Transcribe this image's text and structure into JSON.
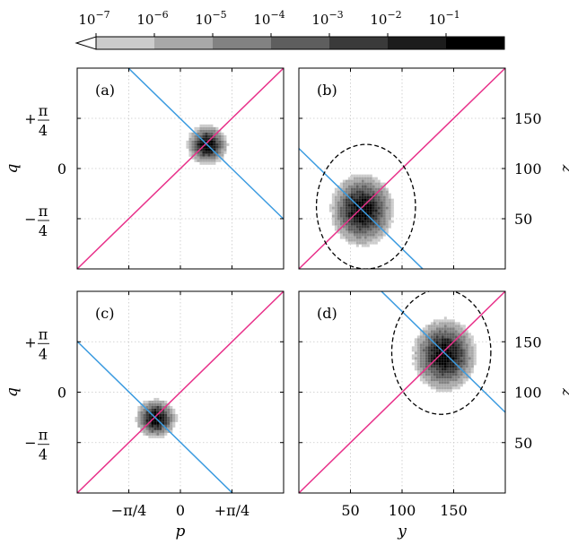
{
  "colorbar": {
    "labels": [
      "10^{-7}",
      "10^{-6}",
      "10^{-5}",
      "10^{-4}",
      "10^{-3}",
      "10^{-2}",
      "10^{-1}"
    ],
    "exponents": [
      -7,
      -6,
      -5,
      -4,
      -3,
      -2,
      -1
    ],
    "colors": [
      "#cccccc",
      "#a8a8a8",
      "#828282",
      "#5e5e5e",
      "#3a3a3a",
      "#1c1c1c",
      "#000000"
    ],
    "extend": "min"
  },
  "style": {
    "blue_line": "#3b9be0",
    "magenta_line": "#e8318a",
    "grid": "#c8c8c8",
    "ellipse": "#000000"
  },
  "chart_data": [
    {
      "panel": "(a)",
      "type": "heatmap",
      "xlabel": "",
      "ylabel": "q",
      "xlim": [
        -1.571,
        1.571
      ],
      "ylim": [
        -1.571,
        1.571
      ],
      "xticks": [
        -0.785,
        0,
        0.785
      ],
      "yticks": [
        {
          "value": 0.785,
          "label": "+π/4"
        },
        {
          "value": 0,
          "label": "0"
        },
        {
          "value": -0.785,
          "label": "−π/4"
        }
      ],
      "blob": {
        "center": [
          0.39,
          0.39
        ],
        "sigma": [
          0.12,
          0.12
        ]
      },
      "lines": [
        {
          "color": "magenta",
          "slope": 1,
          "intercept": 0
        },
        {
          "color": "blue",
          "slope": -1,
          "intercept": 0.78
        }
      ],
      "grid": true
    },
    {
      "panel": "(b)",
      "type": "heatmap",
      "xlabel": "",
      "ylabel": "z",
      "yaxis_side": "right",
      "xlim": [
        0,
        200
      ],
      "ylim": [
        0,
        200
      ],
      "yticks": [
        {
          "value": 150,
          "label": "150"
        },
        {
          "value": 100,
          "label": "100"
        },
        {
          "value": 50,
          "label": "50"
        }
      ],
      "blob": {
        "center": [
          60,
          60
        ],
        "sigma": [
          12,
          14
        ]
      },
      "ellipse": {
        "center": [
          65,
          62
        ],
        "radii": [
          48,
          62
        ]
      },
      "lines": [
        {
          "color": "magenta",
          "slope": 1,
          "intercept": 0
        },
        {
          "color": "blue",
          "slope": -1,
          "intercept": 120
        }
      ],
      "grid": true
    },
    {
      "panel": "(c)",
      "type": "heatmap",
      "xlabel": "p",
      "ylabel": "q",
      "xlim": [
        -1.571,
        1.571
      ],
      "ylim": [
        -1.571,
        1.571
      ],
      "xticks": [
        {
          "value": -0.785,
          "label": "−π/4"
        },
        {
          "value": 0,
          "label": "0"
        },
        {
          "value": 0.785,
          "label": "+π/4"
        }
      ],
      "yticks": [
        {
          "value": 0.785,
          "label": "+π/4"
        },
        {
          "value": 0,
          "label": "0"
        },
        {
          "value": -0.785,
          "label": "−π/4"
        }
      ],
      "blob": {
        "center": [
          -0.39,
          -0.39
        ],
        "sigma": [
          0.12,
          0.12
        ]
      },
      "lines": [
        {
          "color": "magenta",
          "slope": 1,
          "intercept": 0
        },
        {
          "color": "blue",
          "slope": -1,
          "intercept": -0.78
        }
      ],
      "grid": true
    },
    {
      "panel": "(d)",
      "type": "heatmap",
      "xlabel": "y",
      "ylabel": "z",
      "yaxis_side": "right",
      "xlim": [
        0,
        200
      ],
      "ylim": [
        0,
        200
      ],
      "xticks": [
        {
          "value": 50,
          "label": "50"
        },
        {
          "value": 100,
          "label": "100"
        },
        {
          "value": 150,
          "label": "150"
        }
      ],
      "yticks": [
        {
          "value": 150,
          "label": "150"
        },
        {
          "value": 100,
          "label": "100"
        },
        {
          "value": 50,
          "label": "50"
        }
      ],
      "blob": {
        "center": [
          140,
          138
        ],
        "sigma": [
          12,
          14
        ]
      },
      "ellipse": {
        "center": [
          138,
          140
        ],
        "radii": [
          48,
          62
        ]
      },
      "lines": [
        {
          "color": "magenta",
          "slope": 1,
          "intercept": 0
        },
        {
          "color": "blue",
          "slope": -1,
          "intercept": 280
        }
      ],
      "grid": true
    }
  ]
}
